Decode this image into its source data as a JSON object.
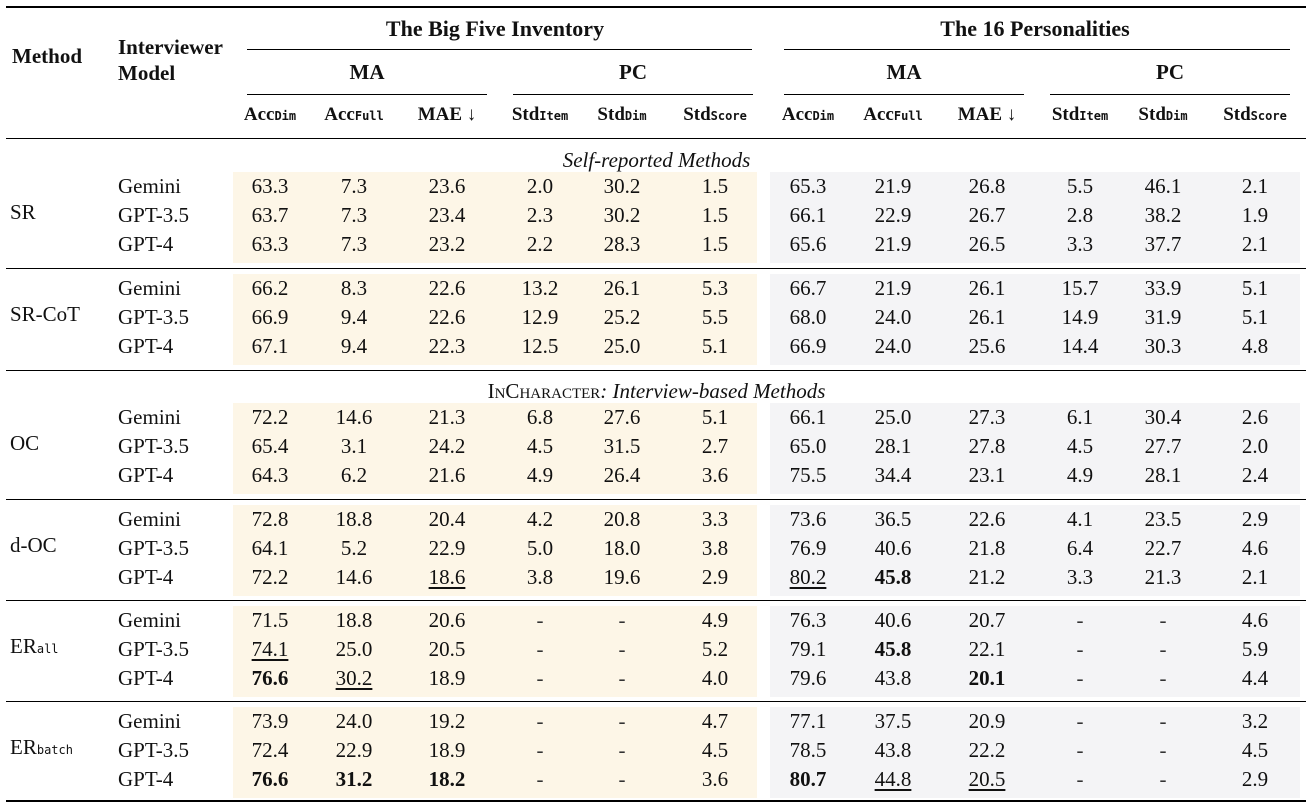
{
  "header": {
    "method": "Method",
    "interviewer_line1": "Interviewer",
    "interviewer_line2": "Model",
    "bfi": "The Big Five Inventory",
    "p16": "The 16 Personalities",
    "ma": "MA",
    "pc": "PC",
    "columns": [
      {
        "base": "Acc",
        "sub": "Dim"
      },
      {
        "base": "Acc",
        "sub": "Full"
      },
      {
        "base": "MAE ↓",
        "sub": ""
      },
      {
        "base": "Std",
        "sub": "Item"
      },
      {
        "base": "Std",
        "sub": "Dim"
      },
      {
        "base": "Std",
        "sub": "Score"
      },
      {
        "base": "Acc",
        "sub": "Dim"
      },
      {
        "base": "Acc",
        "sub": "Full"
      },
      {
        "base": "MAE ↓",
        "sub": ""
      },
      {
        "base": "Std",
        "sub": "Item"
      },
      {
        "base": "Std",
        "sub": "Dim"
      },
      {
        "base": "Std",
        "sub": "Score"
      }
    ]
  },
  "sections": {
    "self_reported": "Self-reported Methods",
    "incharacter_name": "InCharacter",
    "incharacter_rest": ": Interview-based Methods"
  },
  "groups": [
    {
      "method": "SR",
      "method_sub": "",
      "rows": [
        {
          "model": "Gemini",
          "values": [
            "63.3",
            "7.3",
            "23.6",
            "2.0",
            "30.2",
            "1.5",
            "65.3",
            "21.9",
            "26.8",
            "5.5",
            "46.1",
            "2.1"
          ]
        },
        {
          "model": "GPT-3.5",
          "values": [
            "63.7",
            "7.3",
            "23.4",
            "2.3",
            "30.2",
            "1.5",
            "66.1",
            "22.9",
            "26.7",
            "2.8",
            "38.2",
            "1.9"
          ]
        },
        {
          "model": "GPT-4",
          "values": [
            "63.3",
            "7.3",
            "23.2",
            "2.2",
            "28.3",
            "1.5",
            "65.6",
            "21.9",
            "26.5",
            "3.3",
            "37.7",
            "2.1"
          ]
        }
      ]
    },
    {
      "method": "SR-CoT",
      "method_sub": "",
      "rows": [
        {
          "model": "Gemini",
          "values": [
            "66.2",
            "8.3",
            "22.6",
            "13.2",
            "26.1",
            "5.3",
            "66.7",
            "21.9",
            "26.1",
            "15.7",
            "33.9",
            "5.1"
          ]
        },
        {
          "model": "GPT-3.5",
          "values": [
            "66.9",
            "9.4",
            "22.6",
            "12.9",
            "25.2",
            "5.5",
            "68.0",
            "24.0",
            "26.1",
            "14.9",
            "31.9",
            "5.1"
          ]
        },
        {
          "model": "GPT-4",
          "values": [
            "67.1",
            "9.4",
            "22.3",
            "12.5",
            "25.0",
            "5.1",
            "66.9",
            "24.0",
            "25.6",
            "14.4",
            "30.3",
            "4.8"
          ]
        }
      ]
    },
    {
      "method": "OC",
      "method_sub": "",
      "rows": [
        {
          "model": "Gemini",
          "values": [
            "72.2",
            "14.6",
            "21.3",
            "6.8",
            "27.6",
            "5.1",
            "66.1",
            "25.0",
            "27.3",
            "6.1",
            "30.4",
            "2.6"
          ]
        },
        {
          "model": "GPT-3.5",
          "values": [
            "65.4",
            "3.1",
            "24.2",
            "4.5",
            "31.5",
            "2.7",
            "65.0",
            "28.1",
            "27.8",
            "4.5",
            "27.7",
            "2.0"
          ]
        },
        {
          "model": "GPT-4",
          "values": [
            "64.3",
            "6.2",
            "21.6",
            "4.9",
            "26.4",
            "3.6",
            "75.5",
            "34.4",
            "23.1",
            "4.9",
            "28.1",
            "2.4"
          ]
        }
      ]
    },
    {
      "method": "d-OC",
      "method_sub": "",
      "rows": [
        {
          "model": "Gemini",
          "values": [
            "72.8",
            "18.8",
            "20.4",
            "4.2",
            "20.8",
            "3.3",
            "73.6",
            "36.5",
            "22.6",
            "4.1",
            "23.5",
            "2.9"
          ]
        },
        {
          "model": "GPT-3.5",
          "values": [
            "64.1",
            "5.2",
            "22.9",
            "5.0",
            "18.0",
            "3.8",
            "76.9",
            "40.6",
            "21.8",
            "6.4",
            "22.7",
            "4.6"
          ]
        },
        {
          "model": "GPT-4",
          "values": [
            "72.2",
            "14.6",
            "18.6",
            "3.8",
            "19.6",
            "2.9",
            "80.2",
            "45.8",
            "21.2",
            "3.3",
            "21.3",
            "2.1"
          ],
          "bold": [
            7
          ],
          "underline": [
            2,
            6
          ]
        }
      ]
    },
    {
      "method": "ER",
      "method_sub": "all",
      "rows": [
        {
          "model": "Gemini",
          "values": [
            "71.5",
            "18.8",
            "20.6",
            "-",
            "-",
            "4.9",
            "76.3",
            "40.6",
            "20.7",
            "-",
            "-",
            "4.6"
          ]
        },
        {
          "model": "GPT-3.5",
          "values": [
            "74.1",
            "25.0",
            "20.5",
            "-",
            "-",
            "5.2",
            "79.1",
            "45.8",
            "22.1",
            "-",
            "-",
            "5.9"
          ],
          "bold": [
            7
          ],
          "underline": [
            0
          ]
        },
        {
          "model": "GPT-4",
          "values": [
            "76.6",
            "30.2",
            "18.9",
            "-",
            "-",
            "4.0",
            "79.6",
            "43.8",
            "20.1",
            "-",
            "-",
            "4.4"
          ],
          "bold": [
            0,
            8
          ],
          "underline": [
            1
          ]
        }
      ]
    },
    {
      "method": "ER",
      "method_sub": "batch",
      "rows": [
        {
          "model": "Gemini",
          "values": [
            "73.9",
            "24.0",
            "19.2",
            "-",
            "-",
            "4.7",
            "77.1",
            "37.5",
            "20.9",
            "-",
            "-",
            "3.2"
          ]
        },
        {
          "model": "GPT-3.5",
          "values": [
            "72.4",
            "22.9",
            "18.9",
            "-",
            "-",
            "4.5",
            "78.5",
            "43.8",
            "22.2",
            "-",
            "-",
            "4.5"
          ]
        },
        {
          "model": "GPT-4",
          "values": [
            "76.6",
            "31.2",
            "18.2",
            "-",
            "-",
            "3.6",
            "80.7",
            "44.8",
            "20.5",
            "-",
            "-",
            "2.9"
          ],
          "bold": [
            0,
            1,
            2,
            6
          ],
          "underline": [
            7,
            8
          ]
        }
      ]
    }
  ]
}
